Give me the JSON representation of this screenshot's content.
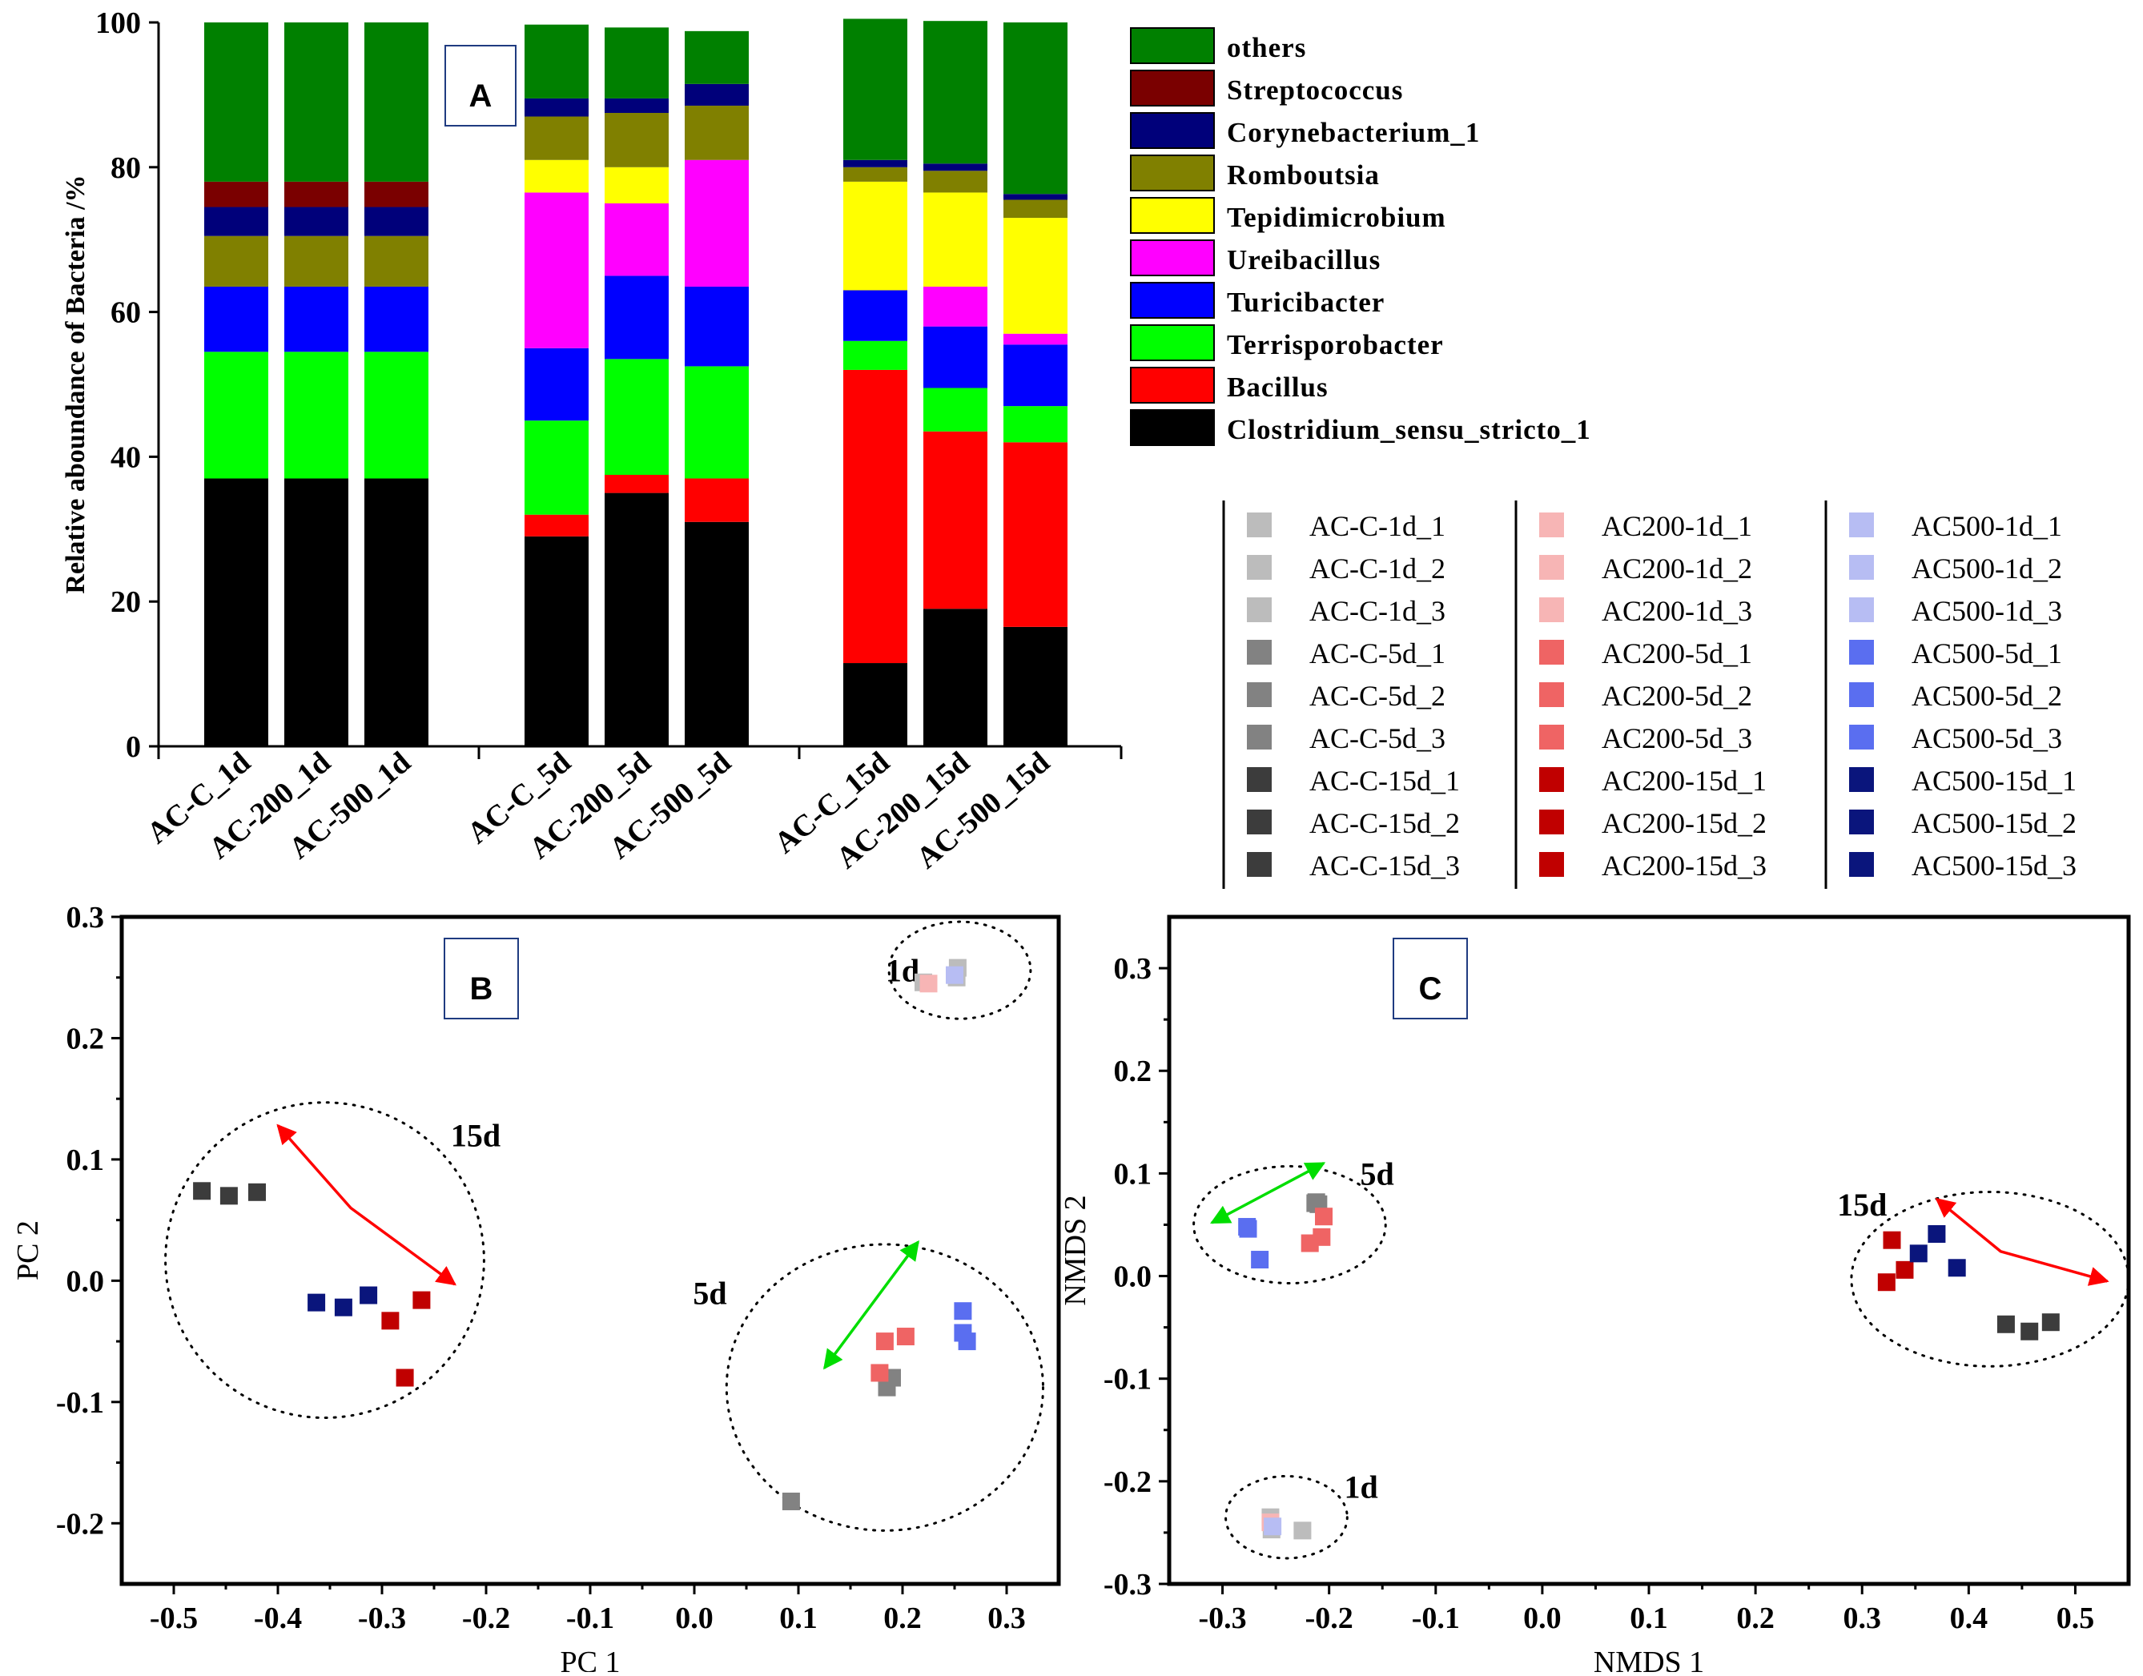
{
  "chart_data": [
    {
      "id": "A",
      "type": "bar",
      "panel_label": "A",
      "ylabel": "Relative aboundance of Bacteria /%",
      "ylim": [
        0,
        100
      ],
      "yticks": [
        "0",
        "20",
        "40",
        "60",
        "80",
        "100"
      ],
      "categories": [
        "AC-C_1d",
        "AC-200_1d",
        "AC-500_1d",
        "AC-C_5d",
        "AC-200_5d",
        "AC-500_5d",
        "AC-C_15d",
        "AC-200_15d",
        "AC-500_15d"
      ],
      "series": [
        {
          "name": "Clostridium_sensu_stricto_1",
          "color": "#000000",
          "values": [
            37,
            37,
            37,
            29,
            35,
            31,
            11.5,
            19,
            16.5
          ]
        },
        {
          "name": "Bacillus",
          "color": "#ff0000",
          "values": [
            0,
            0,
            0,
            3,
            2.5,
            6,
            40.5,
            24.5,
            25.5
          ]
        },
        {
          "name": "Terrisporobacter",
          "color": "#00ff00",
          "values": [
            17.5,
            17.5,
            17.5,
            13,
            16,
            15.5,
            4,
            6,
            5
          ]
        },
        {
          "name": "Turicibacter",
          "color": "#0000ff",
          "values": [
            9,
            9,
            9,
            10,
            11.5,
            11,
            7,
            8.5,
            8.5
          ]
        },
        {
          "name": "Ureibacillus",
          "color": "#ff00ff",
          "values": [
            0,
            0,
            0,
            21.5,
            10,
            17.5,
            0,
            5.5,
            1.5
          ]
        },
        {
          "name": "Tepidimicrobium",
          "color": "#ffff00",
          "values": [
            0,
            0,
            0,
            4.5,
            5,
            0,
            15,
            13,
            16
          ]
        },
        {
          "name": "Romboutsia",
          "color": "#808000",
          "values": [
            7,
            7,
            7,
            6,
            7.5,
            7.5,
            2,
            3,
            2.5
          ]
        },
        {
          "name": "Corynebacterium_1",
          "color": "#00007a",
          "values": [
            4,
            4,
            4,
            2.5,
            2,
            3,
            1,
            1,
            0.8
          ]
        },
        {
          "name": "Streptococcus",
          "color": "#7a0000",
          "values": [
            3.5,
            3.5,
            3.5,
            0,
            0,
            0,
            0,
            0,
            0
          ]
        },
        {
          "name": "others",
          "color": "#008000",
          "values": [
            22,
            22,
            22,
            10.2,
            9.8,
            7.3,
            19.5,
            19.7,
            23.7
          ]
        }
      ],
      "legend_order": [
        "others",
        "Streptococcus",
        "Corynebacterium_1",
        "Romboutsia",
        "Tepidimicrobium",
        "Ureibacillus",
        "Turicibacter",
        "Terrisporobacter",
        "Bacillus",
        "Clostridium_sensu_stricto_1"
      ]
    },
    {
      "id": "B",
      "type": "scatter",
      "panel_label": "B",
      "xlabel": "PC 1",
      "ylabel": "PC 2",
      "xlim": [
        -0.55,
        0.35
      ],
      "ylim": [
        -0.25,
        0.3
      ],
      "xticks": [
        -0.5,
        -0.4,
        -0.3,
        -0.2,
        -0.1,
        0.0,
        0.1,
        0.2,
        0.3
      ],
      "yticks": [
        -0.2,
        -0.1,
        0.0,
        0.1,
        0.2,
        0.3
      ],
      "xtick_labels": [
        "-0.5",
        "-0.4",
        "-0.3",
        "-0.2",
        "-0.1",
        "0.0",
        "0.1",
        "0.2",
        "0.3"
      ],
      "ytick_labels": [
        "-0.2",
        "-0.1",
        "0.0",
        "0.1",
        "0.2",
        "0.3"
      ],
      "points": [
        {
          "x": 0.22,
          "y": 0.246,
          "s": "AC-C-1d_1"
        },
        {
          "x": 0.252,
          "y": 0.25,
          "s": "AC-C-1d_2"
        },
        {
          "x": 0.253,
          "y": 0.258,
          "s": "AC-C-1d_3"
        },
        {
          "x": 0.225,
          "y": 0.245,
          "s": "AC200-1d_1"
        },
        {
          "x": 0.25,
          "y": 0.252,
          "s": "AC500-1d_1"
        },
        {
          "x": 0.19,
          "y": -0.08,
          "s": "AC-C-5d_1"
        },
        {
          "x": 0.185,
          "y": -0.088,
          "s": "AC-C-5d_2"
        },
        {
          "x": 0.093,
          "y": -0.182,
          "s": "AC-C-5d_3"
        },
        {
          "x": 0.183,
          "y": -0.05,
          "s": "AC200-5d_1"
        },
        {
          "x": 0.203,
          "y": -0.046,
          "s": "AC200-5d_2"
        },
        {
          "x": 0.178,
          "y": -0.076,
          "s": "AC200-5d_3"
        },
        {
          "x": 0.258,
          "y": -0.025,
          "s": "AC500-5d_1"
        },
        {
          "x": 0.258,
          "y": -0.043,
          "s": "AC500-5d_2"
        },
        {
          "x": 0.262,
          "y": -0.05,
          "s": "AC500-5d_3"
        },
        {
          "x": -0.473,
          "y": 0.074,
          "s": "AC-C-15d_1"
        },
        {
          "x": -0.447,
          "y": 0.07,
          "s": "AC-C-15d_2"
        },
        {
          "x": -0.42,
          "y": 0.073,
          "s": "AC-C-15d_3"
        },
        {
          "x": -0.262,
          "y": -0.016,
          "s": "AC200-15d_1"
        },
        {
          "x": -0.292,
          "y": -0.033,
          "s": "AC200-15d_2"
        },
        {
          "x": -0.278,
          "y": -0.08,
          "s": "AC200-15d_3"
        },
        {
          "x": -0.363,
          "y": -0.018,
          "s": "AC500-15d_1"
        },
        {
          "x": -0.337,
          "y": -0.022,
          "s": "AC500-15d_2"
        },
        {
          "x": -0.313,
          "y": -0.012,
          "s": "AC500-15d_3"
        }
      ],
      "ellipses": [
        {
          "label": "1d",
          "cx": 0.255,
          "cy": 0.256,
          "rx": 0.068,
          "ry": 0.04,
          "tx": 0.2,
          "ty": 0.256
        },
        {
          "label": "15d",
          "cx": -0.355,
          "cy": 0.017,
          "rx": 0.153,
          "ry": 0.13,
          "tx": -0.21,
          "ty": 0.12
        },
        {
          "label": "5d",
          "cx": 0.183,
          "cy": -0.088,
          "rx": 0.152,
          "ry": 0.118,
          "tx": 0.015,
          "ty": -0.01
        }
      ],
      "arrows": [
        {
          "color": "#ff0000",
          "from": [
            -0.4,
            0.128
          ],
          "via": [
            -0.33,
            0.06
          ],
          "to": [
            -0.23,
            -0.003
          ],
          "both": true
        },
        {
          "color": "#00dd00",
          "from": [
            0.125,
            -0.072
          ],
          "to": [
            0.215,
            0.032
          ],
          "both": true
        }
      ]
    },
    {
      "id": "C",
      "type": "scatter",
      "panel_label": "C",
      "xlabel": "NMDS 1",
      "ylabel": "NMDS 2",
      "xlim": [
        -0.35,
        0.55
      ],
      "ylim": [
        -0.3,
        0.35
      ],
      "xticks": [
        -0.3,
        -0.2,
        -0.1,
        0.0,
        0.1,
        0.2,
        0.3,
        0.4,
        0.5
      ],
      "yticks": [
        -0.3,
        -0.2,
        -0.1,
        0.0,
        0.1,
        0.2,
        0.3
      ],
      "xtick_labels": [
        "-0.3",
        "-0.2",
        "-0.1",
        "0.0",
        "0.1",
        "0.2",
        "0.3",
        "0.4",
        "0.5"
      ],
      "ytick_labels": [
        "-0.3",
        "-0.2",
        "-0.1",
        "0.0",
        "0.1",
        "0.2",
        "0.3"
      ],
      "points": [
        {
          "x": -0.255,
          "y": -0.235,
          "s": "AC-C-1d_1"
        },
        {
          "x": -0.254,
          "y": -0.247,
          "s": "AC-C-1d_2"
        },
        {
          "x": -0.225,
          "y": -0.248,
          "s": "AC-C-1d_3"
        },
        {
          "x": -0.255,
          "y": -0.24,
          "s": "AC200-1d_1"
        },
        {
          "x": -0.253,
          "y": -0.244,
          "s": "AC500-1d_1"
        },
        {
          "x": -0.212,
          "y": 0.072,
          "s": "AC-C-5d_1"
        },
        {
          "x": -0.21,
          "y": 0.07,
          "s": "AC-C-5d_2"
        },
        {
          "x": -0.213,
          "y": 0.071,
          "s": "AC-C-5d_3"
        },
        {
          "x": -0.205,
          "y": 0.058,
          "s": "AC200-5d_1"
        },
        {
          "x": -0.207,
          "y": 0.038,
          "s": "AC200-5d_2"
        },
        {
          "x": -0.218,
          "y": 0.032,
          "s": "AC200-5d_3"
        },
        {
          "x": -0.277,
          "y": 0.048,
          "s": "AC500-5d_1"
        },
        {
          "x": -0.265,
          "y": 0.016,
          "s": "AC500-5d_2"
        },
        {
          "x": -0.276,
          "y": 0.046,
          "s": "AC500-5d_3"
        },
        {
          "x": 0.435,
          "y": -0.047,
          "s": "AC-C-15d_1"
        },
        {
          "x": 0.457,
          "y": -0.054,
          "s": "AC-C-15d_2"
        },
        {
          "x": 0.477,
          "y": -0.045,
          "s": "AC-C-15d_3"
        },
        {
          "x": 0.328,
          "y": 0.035,
          "s": "AC200-15d_1"
        },
        {
          "x": 0.34,
          "y": 0.006,
          "s": "AC200-15d_2"
        },
        {
          "x": 0.323,
          "y": -0.006,
          "s": "AC200-15d_3"
        },
        {
          "x": 0.353,
          "y": 0.022,
          "s": "AC500-15d_1"
        },
        {
          "x": 0.37,
          "y": 0.041,
          "s": "AC500-15d_2"
        },
        {
          "x": 0.389,
          "y": 0.008,
          "s": "AC500-15d_3"
        }
      ],
      "ellipses": [
        {
          "label": "5d",
          "cx": -0.237,
          "cy": 0.05,
          "rx": 0.09,
          "ry": 0.057,
          "tx": -0.155,
          "ty": 0.1
        },
        {
          "label": "15d",
          "cx": 0.42,
          "cy": -0.003,
          "rx": 0.13,
          "ry": 0.085,
          "tx": 0.3,
          "ty": 0.07
        },
        {
          "label": "1d",
          "cx": -0.24,
          "cy": -0.235,
          "rx": 0.057,
          "ry": 0.04,
          "tx": -0.17,
          "ty": -0.205
        }
      ],
      "arrows": [
        {
          "color": "#ff0000",
          "from": [
            0.37,
            0.075
          ],
          "via": [
            0.43,
            0.024
          ],
          "to": [
            0.53,
            -0.005
          ],
          "both": true
        },
        {
          "color": "#00dd00",
          "from": [
            -0.31,
            0.052
          ],
          "to": [
            -0.205,
            0.11
          ],
          "both": true
        }
      ]
    }
  ],
  "scatter_legend": {
    "groups": [
      {
        "labels": [
          "AC-C-1d_1",
          "AC-C-1d_2",
          "AC-C-1d_3",
          "AC-C-5d_1",
          "AC-C-5d_2",
          "AC-C-5d_3",
          "AC-C-15d_1",
          "AC-C-15d_2",
          "AC-C-15d_3"
        ],
        "colors": [
          "#bcbcbc",
          "#bcbcbc",
          "#bcbcbc",
          "#828282",
          "#828282",
          "#828282",
          "#3c3c3c",
          "#3c3c3c",
          "#3c3c3c"
        ]
      },
      {
        "labels": [
          "AC200-1d_1",
          "AC200-1d_2",
          "AC200-1d_3",
          "AC200-5d_1",
          "AC200-5d_2",
          "AC200-5d_3",
          "AC200-15d_1",
          "AC200-15d_2",
          "AC200-15d_3"
        ],
        "colors": [
          "#f7b5b5",
          "#f7b5b5",
          "#f7b5b5",
          "#ef6464",
          "#ef6464",
          "#ef6464",
          "#c00000",
          "#c00000",
          "#c00000"
        ]
      },
      {
        "labels": [
          "AC500-1d_1",
          "AC500-1d_2",
          "AC500-1d_3",
          "AC500-5d_1",
          "AC500-5d_2",
          "AC500-5d_3",
          "AC500-15d_1",
          "AC500-15d_2",
          "AC500-15d_3"
        ],
        "colors": [
          "#b7bdf3",
          "#b7bdf3",
          "#b7bdf3",
          "#5a6ef0",
          "#5a6ef0",
          "#5a6ef0",
          "#0a157c",
          "#0a157c",
          "#0a157c"
        ]
      }
    ]
  }
}
